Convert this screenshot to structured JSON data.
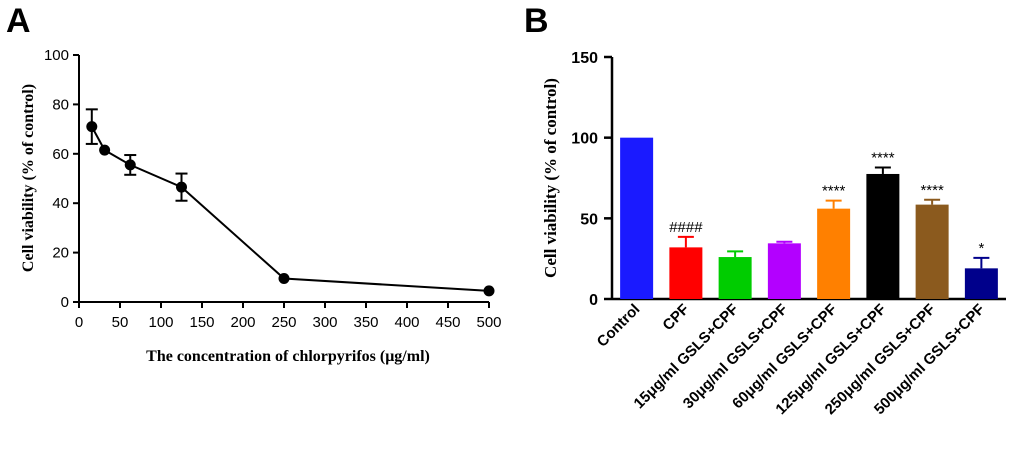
{
  "chart_data": [
    {
      "panel": "A",
      "type": "line",
      "xlabel": "The concentration of chlorpyrifos (μg/ml)",
      "ylabel": "Cell viability (% of control)",
      "xlim": [
        0,
        500
      ],
      "ylim": [
        0,
        100
      ],
      "xticks": [
        0,
        50,
        100,
        150,
        200,
        250,
        300,
        350,
        400,
        450,
        500
      ],
      "yticks": [
        0,
        20,
        40,
        60,
        80,
        100
      ],
      "series": [
        {
          "name": "Cell viability",
          "x": [
            15.6,
            31.25,
            62.5,
            125,
            250,
            500
          ],
          "y": [
            71,
            61.5,
            55.5,
            46.5,
            9.5,
            4.5
          ],
          "error": [
            7,
            0,
            4,
            5.5,
            0,
            0
          ]
        }
      ]
    },
    {
      "panel": "B",
      "type": "bar",
      "ylabel": "Cell viability (% of control)",
      "ylim": [
        0,
        150
      ],
      "yticks": [
        0,
        50,
        100,
        150
      ],
      "categories": [
        "Control",
        "CPF",
        "15μg/ml GSLS+CPF",
        "30μg/ml GSLS+CPF",
        "60μg/ml GSLS+CPF",
        "125μg/ml GSLS+CPF",
        "250μg/ml GSLS+CPF",
        "500μg/ml GSLS+CPF"
      ],
      "values": [
        100,
        32,
        26,
        34.5,
        56,
        77.5,
        58.5,
        19
      ],
      "errors": [
        0,
        6.5,
        3.5,
        1,
        5,
        4,
        3,
        6.5
      ],
      "colors": [
        "#1a1aff",
        "#ff0000",
        "#00cc00",
        "#b300ff",
        "#ff8000",
        "#000000",
        "#8b5a1e",
        "#00008b"
      ],
      "annotations": [
        "",
        "####",
        "",
        "",
        "****",
        "****",
        "****",
        "*"
      ]
    }
  ],
  "panels": {
    "a_label": "A",
    "b_label": "B"
  }
}
